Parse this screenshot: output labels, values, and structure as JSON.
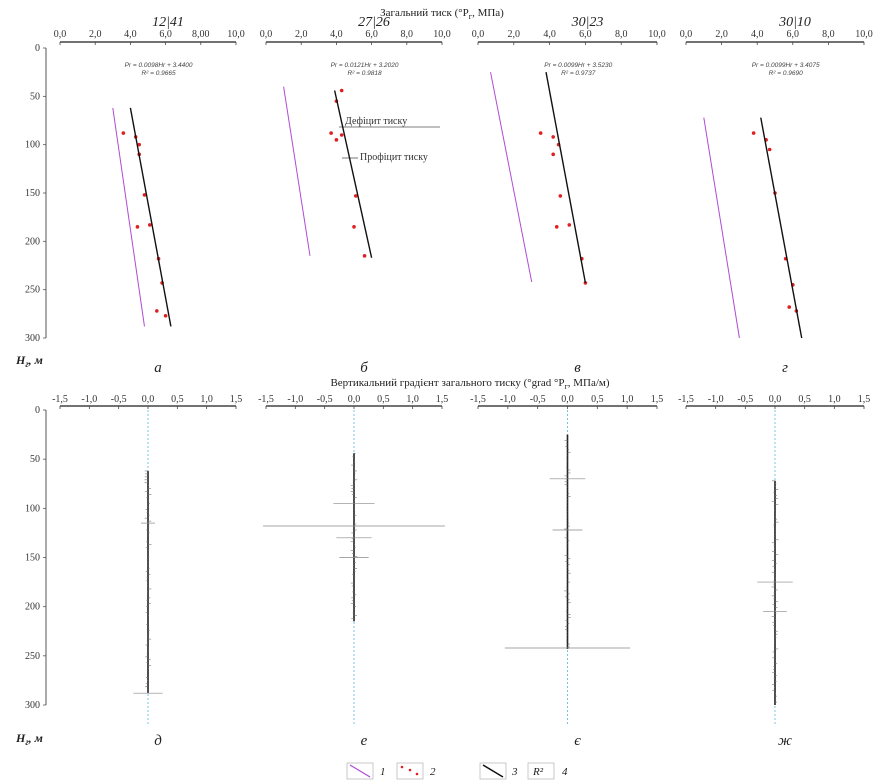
{
  "figure": {
    "top_title": "Загальний тиск (°P",
    "top_title_sub": "г",
    "top_title_unit": ", МПа)",
    "bottom_title": "Вертикальний градієнт загального тиску (°grad °P",
    "bottom_title_sub": "г",
    "bottom_title_unit": ", МПа/м)",
    "depth_axis_label": "H",
    "depth_axis_label_sub": "г",
    "depth_axis_unit": ", м"
  },
  "annotations": {
    "deficit": "Дефіцит тиску",
    "proficit": "Профіцит тиску"
  },
  "legend": [
    {
      "number": "1",
      "color": "#b04ad6",
      "icon": "purple-line"
    },
    {
      "number": "2",
      "color": "#e02020",
      "icon": "red-dots"
    },
    {
      "number": "3",
      "color": "#111111",
      "icon": "black-line"
    },
    {
      "number": "4",
      "label": "R²",
      "icon": "r-squared-box"
    }
  ],
  "chart_data": [
    {
      "type": "line",
      "panel_letter": "а",
      "well": "12|41",
      "xlim": [
        0,
        10
      ],
      "xticks": [
        "0,0",
        "2,0",
        "4,0",
        "6,0",
        "8,00",
        "10,0"
      ],
      "ylim": [
        0,
        300
      ],
      "yticks": [
        "0",
        "50",
        "100",
        "150",
        "200",
        "250",
        "300"
      ],
      "equation": "Pr = 0.0098Hr + 3.4400",
      "r2": "R² = 0.9665",
      "series": [
        {
          "role": "hydrostatic",
          "points": [
            [
              3.0,
              62
            ],
            [
              4.8,
              288
            ]
          ]
        },
        {
          "role": "measured",
          "points": [
            [
              3.6,
              88
            ],
            [
              4.3,
              92
            ],
            [
              4.5,
              100
            ],
            [
              4.5,
              110
            ],
            [
              4.8,
              152
            ],
            [
              4.4,
              185
            ],
            [
              5.1,
              183
            ],
            [
              5.6,
              218
            ],
            [
              5.8,
              243
            ],
            [
              5.5,
              272
            ],
            [
              6.0,
              277
            ]
          ]
        },
        {
          "role": "trend",
          "points": [
            [
              4.0,
              62
            ],
            [
              6.3,
              288
            ]
          ]
        }
      ]
    },
    {
      "type": "line",
      "panel_letter": "б",
      "well": "27|26",
      "xlim": [
        0,
        10
      ],
      "xticks": [
        "0,0",
        "2,0",
        "4,0",
        "6,0",
        "8,0",
        "10,0"
      ],
      "ylim": [
        0,
        300
      ],
      "yticks": [],
      "equation": "Pr = 0.0121Hr + 3.2020",
      "r2": "R² = 0.9818",
      "series": [
        {
          "role": "hydrostatic",
          "points": [
            [
              1.0,
              40
            ],
            [
              2.5,
              215
            ]
          ]
        },
        {
          "role": "measured",
          "points": [
            [
              4.3,
              44
            ],
            [
              4.0,
              55
            ],
            [
              3.7,
              88
            ],
            [
              4.3,
              90
            ],
            [
              4.0,
              95
            ],
            [
              5.1,
              153
            ],
            [
              5.0,
              185
            ],
            [
              5.6,
              215
            ]
          ]
        },
        {
          "role": "trend",
          "points": [
            [
              3.9,
              44
            ],
            [
              6.0,
              217
            ]
          ]
        }
      ]
    },
    {
      "type": "line",
      "panel_letter": "в",
      "well": "30|23",
      "xlim": [
        0,
        10
      ],
      "xticks": [
        "0,0",
        "2,0",
        "4,0",
        "6,0",
        "8,0",
        "10,0"
      ],
      "ylim": [
        0,
        300
      ],
      "yticks": [],
      "equation": "Pr = 0.0099Hr + 3.5230",
      "r2": "R² = 0.9737",
      "series": [
        {
          "role": "hydrostatic",
          "points": [
            [
              0.7,
              25
            ],
            [
              3.0,
              242
            ]
          ]
        },
        {
          "role": "measured",
          "points": [
            [
              3.5,
              88
            ],
            [
              4.2,
              92
            ],
            [
              4.5,
              100
            ],
            [
              4.2,
              110
            ],
            [
              4.6,
              153
            ],
            [
              4.4,
              185
            ],
            [
              5.1,
              183
            ],
            [
              5.8,
              218
            ],
            [
              6.0,
              243
            ]
          ]
        },
        {
          "role": "trend",
          "points": [
            [
              3.8,
              25
            ],
            [
              6.0,
              243
            ]
          ]
        }
      ]
    },
    {
      "type": "line",
      "panel_letter": "г",
      "well": "30|10",
      "xlim": [
        0,
        10
      ],
      "xticks": [
        "0,0",
        "2,0",
        "4,0",
        "6,0",
        "8,0",
        "10,0"
      ],
      "ylim": [
        0,
        300
      ],
      "yticks": [],
      "equation": "Pr = 0.0099Hr + 3.4075",
      "r2": "R² = 0.9690",
      "series": [
        {
          "role": "hydrostatic",
          "points": [
            [
              1.0,
              72
            ],
            [
              3.0,
              300
            ]
          ]
        },
        {
          "role": "measured",
          "points": [
            [
              3.8,
              88
            ],
            [
              4.5,
              95
            ],
            [
              4.7,
              105
            ],
            [
              5.0,
              150
            ],
            [
              5.6,
              218
            ],
            [
              6.0,
              245
            ],
            [
              5.8,
              268
            ],
            [
              6.2,
              272
            ]
          ]
        },
        {
          "role": "trend",
          "points": [
            [
              4.2,
              72
            ],
            [
              6.5,
              300
            ]
          ]
        }
      ]
    },
    {
      "type": "line",
      "panel_letter": "д",
      "xlim": [
        -1.5,
        1.5
      ],
      "xticks": [
        "-1,5",
        "-1,0",
        "-0,5",
        "0,0",
        "0,5",
        "1,0",
        "1,5"
      ],
      "ylim": [
        0,
        300
      ],
      "yticks": [
        "0",
        "50",
        "100",
        "150",
        "200",
        "250",
        "300"
      ],
      "depth_range": [
        62,
        288
      ],
      "spikes": [
        [
          115,
          0.12
        ],
        [
          288,
          0.25
        ]
      ]
    },
    {
      "type": "line",
      "panel_letter": "е",
      "xlim": [
        -1.5,
        1.5
      ],
      "xticks": [
        "-1,5",
        "-1,0",
        "-0,5",
        "0,0",
        "0,5",
        "1,0",
        "1,5"
      ],
      "ylim": [
        0,
        300
      ],
      "yticks": [],
      "depth_range": [
        44,
        215
      ],
      "spikes": [
        [
          118,
          1.55
        ],
        [
          95,
          0.35
        ],
        [
          130,
          0.3
        ],
        [
          150,
          0.25
        ]
      ]
    },
    {
      "type": "line",
      "panel_letter": "є",
      "xlim": [
        -1.5,
        1.5
      ],
      "xticks": [
        "-1,5",
        "-1,0",
        "-0,5",
        "0,0",
        "0,5",
        "1,0",
        "1,5"
      ],
      "ylim": [
        0,
        300
      ],
      "yticks": [],
      "depth_range": [
        25,
        243
      ],
      "spikes": [
        [
          242,
          1.05
        ],
        [
          70,
          0.3
        ],
        [
          122,
          0.25
        ]
      ]
    },
    {
      "type": "line",
      "panel_letter": "ж",
      "xlim": [
        -1.5,
        1.5
      ],
      "xticks": [
        "-1,5",
        "-1,0",
        "-0,5",
        "0,0",
        "0,5",
        "1,0",
        "1,5"
      ],
      "ylim": [
        0,
        300
      ],
      "yticks": [],
      "depth_range": [
        72,
        300
      ],
      "spikes": [
        [
          175,
          0.3
        ],
        [
          205,
          0.2
        ]
      ]
    }
  ]
}
